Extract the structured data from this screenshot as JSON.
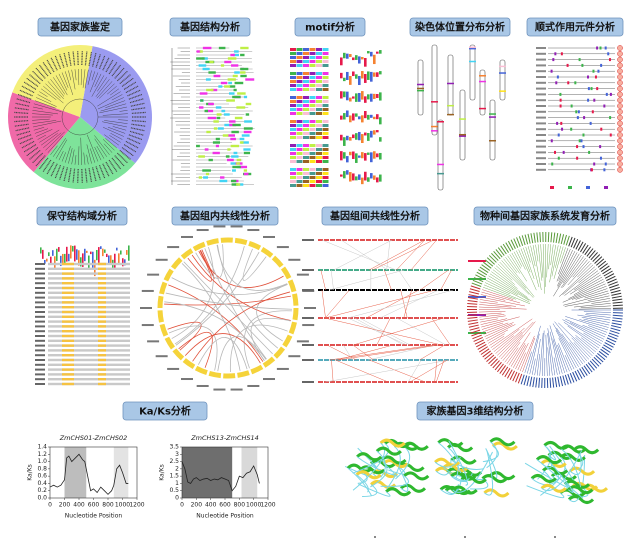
{
  "panels": [
    {
      "title": "基因家族鉴定"
    },
    {
      "title": "基因结构分析"
    },
    {
      "title": "motif分析"
    },
    {
      "title": "染色体位置分布分析"
    },
    {
      "title": "顺式作用元件分析"
    },
    {
      "title": "保守结构域分析"
    },
    {
      "title": "基因组内共线性分析"
    },
    {
      "title": "基因组间共线性分析"
    },
    {
      "title": "物种间基因家族系统发育分析"
    },
    {
      "title": "Ka/Ks分析"
    },
    {
      "title": "家族基因3维结构分析"
    }
  ],
  "chart_data": [
    {
      "type": "line",
      "title": "ZmCHS01-ZmCHS02",
      "xlabel": "Nucleotide Position",
      "ylabel": "Ka/Ks",
      "color": "#222222",
      "x": [
        0,
        50,
        100,
        150,
        200,
        230,
        260,
        300,
        350,
        400,
        450,
        480,
        520,
        560,
        600,
        650,
        700,
        750,
        800,
        850,
        880,
        920,
        960,
        1000,
        1050,
        1080
      ],
      "values": [
        0.3,
        0.35,
        0.3,
        0.35,
        0.5,
        1.1,
        1.15,
        1.0,
        1.1,
        1.2,
        1.05,
        1.0,
        0.6,
        0.2,
        0.25,
        0.15,
        0.3,
        0.2,
        0.1,
        0.2,
        0.35,
        0.8,
        0.9,
        0.7,
        0.4,
        0.4
      ],
      "shaded": [
        [
          200,
          500
        ],
        [
          880,
          1080
        ]
      ],
      "shade_colors": [
        "#bdbdbd",
        "#e3e3e3"
      ],
      "xlim": [
        0,
        1200
      ],
      "xticks": [
        0,
        200,
        400,
        600,
        800,
        1000,
        1200
      ],
      "ylim": [
        0,
        1.4
      ],
      "yticks": [
        {
          "value": 0,
          "label": "0.0"
        },
        0.2,
        0.4,
        0.6,
        0.8,
        {
          "value": 1,
          "label": "1.0"
        },
        1.2,
        1.4
      ]
    },
    {
      "type": "line",
      "title": "ZmCHS13-ZmCHS14",
      "xlabel": "Nucleotide Position",
      "ylabel": "Ka/Ks",
      "color": "#222222",
      "x": [
        0,
        40,
        80,
        120,
        160,
        200,
        250,
        300,
        350,
        400,
        450,
        500,
        550,
        600,
        650,
        700,
        750,
        800,
        850,
        900,
        950,
        1000,
        1050,
        1080
      ],
      "values": [
        2.5,
        2.0,
        1.1,
        1.0,
        1.3,
        1.4,
        1.2,
        1.3,
        1.35,
        1.2,
        1.3,
        1.25,
        1.4,
        1.3,
        1.2,
        0.5,
        0.8,
        1.5,
        1.4,
        1.7,
        1.8,
        2.2,
        1.6,
        1.0
      ],
      "shaded": [
        [
          0,
          700
        ],
        [
          830,
          1050
        ]
      ],
      "shade_colors": [
        "#6e6e6e",
        "#d9d9d9"
      ],
      "xlim": [
        0,
        1200
      ],
      "xticks": [
        0,
        200,
        400,
        600,
        800,
        1000,
        1200
      ],
      "ylim": [
        0,
        3.5
      ],
      "yticks": [
        0,
        0.5,
        1,
        1.5,
        2,
        2.5,
        3,
        3.5
      ]
    }
  ]
}
